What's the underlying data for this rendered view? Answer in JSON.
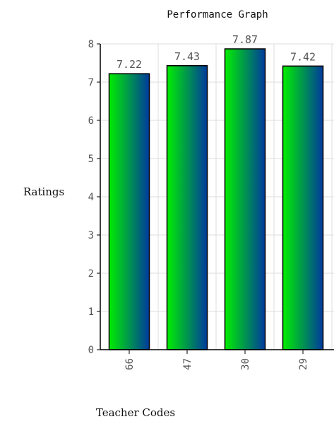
{
  "chart_data": {
    "type": "bar",
    "title": "Performance Graph",
    "xlabel": "Teacher Codes",
    "ylabel": "Ratings",
    "categories": [
      "66",
      "47",
      "30",
      "29"
    ],
    "values": [
      7.22,
      7.43,
      7.87,
      7.42
    ],
    "data_labels": [
      "7.22",
      "7.43",
      "7.87",
      "7.42"
    ],
    "ylim": [
      0,
      8
    ],
    "yticks": [
      "0",
      "1",
      "2",
      "3",
      "4",
      "5",
      "6",
      "7",
      "8"
    ],
    "grid": true,
    "legend": "none",
    "colors": {
      "gradient_start": "#00ee00",
      "gradient_end": "#003a9e",
      "bar_stroke": "#000000",
      "grid": "#dddddd",
      "axis": "#000000"
    }
  }
}
